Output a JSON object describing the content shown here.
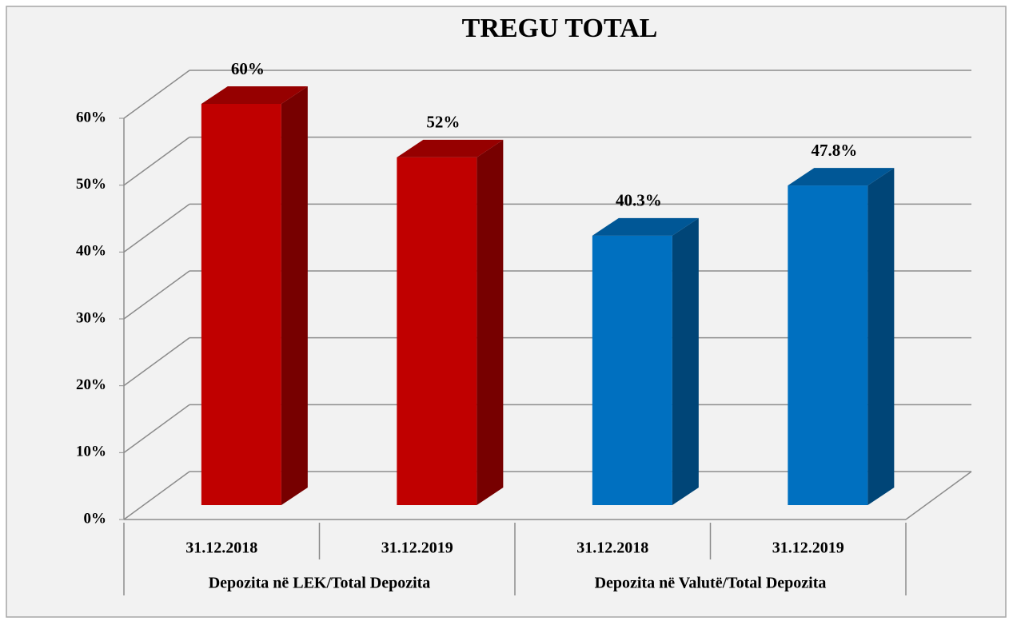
{
  "chart_data": {
    "type": "bar3d",
    "title": "TREGU TOTAL",
    "categories": [
      "31.12.2018",
      "31.12.2019",
      "31.12.2018",
      "31.12.2019"
    ],
    "groups": [
      "Depozita në LEK/Total Depozita",
      "Depozita në Valutë/Total Depozita"
    ],
    "values": [
      60,
      52,
      40.3,
      47.8
    ],
    "value_labels": [
      "60%",
      "52%",
      "40.3%",
      "47.8%"
    ],
    "colors": [
      "#c00000",
      "#c00000",
      "#0070c0",
      "#0070c0"
    ],
    "ylim": [
      0,
      60
    ],
    "yticks": [
      {
        "value": 0,
        "label": "0%"
      },
      {
        "value": 10,
        "label": "10%"
      },
      {
        "value": 20,
        "label": "20%"
      },
      {
        "value": 30,
        "label": "30%"
      },
      {
        "value": 40,
        "label": "40%"
      },
      {
        "value": 50,
        "label": "50%"
      },
      {
        "value": 60,
        "label": "60%"
      }
    ],
    "grid": true
  }
}
